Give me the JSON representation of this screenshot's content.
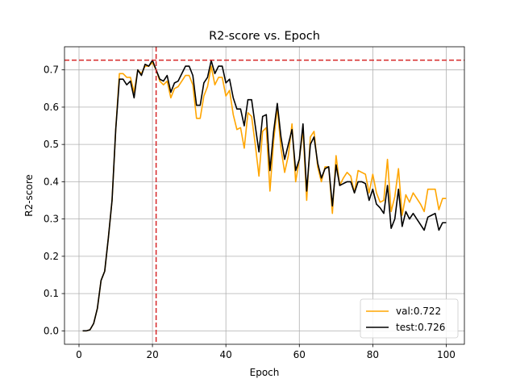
{
  "chart_data": {
    "type": "line",
    "title": "R2-score vs. Epoch",
    "xlabel": "Epoch",
    "ylabel": "R2-score",
    "xlim": [
      -3.95,
      104.95
    ],
    "ylim": [
      -0.036,
      0.762
    ],
    "xticks": [
      0,
      20,
      40,
      60,
      80,
      100
    ],
    "yticks": [
      0.0,
      0.1,
      0.2,
      0.3,
      0.4,
      0.5,
      0.6,
      0.7
    ],
    "xtick_labels": [
      "0",
      "20",
      "40",
      "60",
      "80",
      "100"
    ],
    "ytick_labels": [
      "0.0",
      "0.1",
      "0.2",
      "0.3",
      "0.4",
      "0.5",
      "0.6",
      "0.7"
    ],
    "grid": true,
    "legend_position": "lower-right",
    "reference_lines": {
      "horizontal_y": 0.726,
      "vertical_x": 21,
      "color": "#d62728"
    },
    "series": [
      {
        "name": "val:0.722",
        "color": "#ffa500",
        "x": [
          1,
          2,
          3,
          4,
          5,
          6,
          7,
          8,
          9,
          10,
          11,
          12,
          13,
          14,
          15,
          16,
          17,
          18,
          19,
          20,
          21,
          22,
          23,
          24,
          25,
          26,
          27,
          28,
          29,
          30,
          31,
          32,
          33,
          34,
          35,
          36,
          37,
          38,
          39,
          40,
          41,
          42,
          43,
          44,
          45,
          46,
          47,
          48,
          49,
          50,
          51,
          52,
          53,
          54,
          55,
          56,
          57,
          58,
          59,
          60,
          61,
          62,
          63,
          64,
          65,
          66,
          67,
          68,
          69,
          70,
          71,
          72,
          73,
          74,
          75,
          76,
          77,
          78,
          79,
          80,
          81,
          82,
          83,
          84,
          85,
          86,
          87,
          88,
          89,
          90,
          91,
          92,
          93,
          94,
          95,
          96,
          97,
          98,
          99,
          100
        ],
        "values": [
          0.0,
          0.0,
          0.003,
          0.02,
          0.06,
          0.135,
          0.16,
          0.25,
          0.35,
          0.54,
          0.69,
          0.69,
          0.68,
          0.68,
          0.64,
          0.7,
          0.69,
          0.71,
          0.71,
          0.72,
          0.7,
          0.67,
          0.66,
          0.67,
          0.625,
          0.65,
          0.655,
          0.67,
          0.685,
          0.685,
          0.66,
          0.57,
          0.57,
          0.63,
          0.655,
          0.71,
          0.66,
          0.68,
          0.68,
          0.63,
          0.645,
          0.58,
          0.54,
          0.545,
          0.49,
          0.585,
          0.575,
          0.5,
          0.415,
          0.535,
          0.545,
          0.375,
          0.51,
          0.6,
          0.49,
          0.425,
          0.47,
          0.555,
          0.4,
          0.46,
          0.54,
          0.35,
          0.52,
          0.535,
          0.44,
          0.4,
          0.44,
          0.44,
          0.315,
          0.47,
          0.39,
          0.41,
          0.425,
          0.415,
          0.37,
          0.43,
          0.425,
          0.42,
          0.37,
          0.42,
          0.37,
          0.345,
          0.35,
          0.46,
          0.32,
          0.36,
          0.435,
          0.31,
          0.365,
          0.345,
          0.37,
          0.355,
          0.34,
          0.32,
          0.38,
          0.38,
          0.38,
          0.325,
          0.355,
          0.355
        ]
      },
      {
        "name": "test:0.726",
        "color": "#000000",
        "x": [
          1,
          2,
          3,
          4,
          5,
          6,
          7,
          8,
          9,
          10,
          11,
          12,
          13,
          14,
          15,
          16,
          17,
          18,
          19,
          20,
          21,
          22,
          23,
          24,
          25,
          26,
          27,
          28,
          29,
          30,
          31,
          32,
          33,
          34,
          35,
          36,
          37,
          38,
          39,
          40,
          41,
          42,
          43,
          44,
          45,
          46,
          47,
          48,
          49,
          50,
          51,
          52,
          53,
          54,
          55,
          56,
          57,
          58,
          59,
          60,
          61,
          62,
          63,
          64,
          65,
          66,
          67,
          68,
          69,
          70,
          71,
          72,
          73,
          74,
          75,
          76,
          77,
          78,
          79,
          80,
          81,
          82,
          83,
          84,
          85,
          86,
          87,
          88,
          89,
          90,
          91,
          92,
          93,
          94,
          95,
          96,
          97,
          98,
          99,
          100
        ],
        "values": [
          0.0,
          0.0,
          0.003,
          0.02,
          0.06,
          0.135,
          0.16,
          0.25,
          0.35,
          0.54,
          0.675,
          0.675,
          0.66,
          0.67,
          0.625,
          0.7,
          0.685,
          0.715,
          0.71,
          0.726,
          0.7,
          0.675,
          0.67,
          0.685,
          0.64,
          0.665,
          0.67,
          0.69,
          0.71,
          0.71,
          0.685,
          0.605,
          0.605,
          0.665,
          0.68,
          0.725,
          0.69,
          0.71,
          0.71,
          0.665,
          0.675,
          0.625,
          0.595,
          0.595,
          0.55,
          0.62,
          0.62,
          0.55,
          0.48,
          0.575,
          0.58,
          0.43,
          0.535,
          0.61,
          0.52,
          0.46,
          0.5,
          0.54,
          0.43,
          0.46,
          0.555,
          0.375,
          0.5,
          0.52,
          0.45,
          0.41,
          0.435,
          0.44,
          0.335,
          0.445,
          0.39,
          0.395,
          0.4,
          0.4,
          0.37,
          0.4,
          0.4,
          0.395,
          0.35,
          0.38,
          0.34,
          0.33,
          0.315,
          0.39,
          0.275,
          0.3,
          0.38,
          0.28,
          0.32,
          0.3,
          0.315,
          0.3,
          0.285,
          0.27,
          0.305,
          0.31,
          0.315,
          0.27,
          0.29,
          0.29
        ]
      }
    ]
  }
}
